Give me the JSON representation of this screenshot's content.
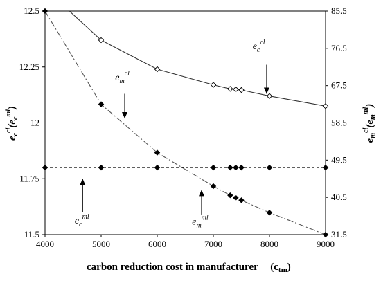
{
  "chart_data": {
    "type": "line",
    "xlabel": "carbon reduction cost in manufacturer",
    "xlabel_symbol": "(c",
    "xlabel_symbol_sub": "tm",
    "xlabel_symbol_close": ")",
    "ylabel_left": {
      "base": "e",
      "sub": "c",
      "sup": "cl",
      "paren_base": "(e",
      "paren_sub": "c",
      "paren_sup": "ml",
      "paren_close": ")"
    },
    "ylabel_right": {
      "base": "e",
      "sub": "m",
      "sup": "cl",
      "paren_base": "(e",
      "paren_sub": "m",
      "paren_sup": "ml",
      "paren_close": ")"
    },
    "xlim": [
      4000,
      9000
    ],
    "ylim_left": [
      11.5,
      12.5
    ],
    "ylim_right": [
      31.5,
      85.5
    ],
    "x_ticks": [
      "4000",
      "5000",
      "6000",
      "7000",
      "8000",
      "9000"
    ],
    "y_ticks_left": [
      "12.5",
      "12.25",
      "12",
      "11.75",
      "11.5"
    ],
    "y_ticks_right": [
      "85.5",
      "76.5",
      "67.5",
      "58.5",
      "49.5",
      "40.5",
      "31.5"
    ],
    "grid": false,
    "series": [
      {
        "key": "ec_cl",
        "axis": "left",
        "style": "solid",
        "marker": "open-diamond",
        "x": [
          4000,
          5000,
          6000,
          7000,
          7300,
          7400,
          7500,
          8000,
          9000
        ],
        "y": [
          12.6,
          12.37,
          12.24,
          12.17,
          12.152,
          12.15,
          12.147,
          12.12,
          12.075
        ]
      },
      {
        "key": "em_cl",
        "axis": "right",
        "style": "dash-dot",
        "marker": "filled-diamond",
        "x": [
          4000,
          5000,
          6000,
          7000,
          7300,
          7400,
          7500,
          8000,
          9000
        ],
        "y": [
          85.5,
          63.0,
          51.3,
          43.2,
          41.0,
          40.4,
          39.8,
          36.8,
          31.5
        ]
      },
      {
        "key": "ec_ml",
        "axis": "left",
        "style": "dashed",
        "marker": "filled-diamond",
        "x": [
          4000,
          5000,
          6000,
          7000,
          7300,
          7400,
          7500,
          8000,
          9000
        ],
        "y": [
          11.8,
          11.8,
          11.8,
          11.8,
          11.8,
          11.8,
          11.8,
          11.8,
          11.8
        ]
      }
    ],
    "annotations": [
      {
        "key": "ec_cl",
        "base": "e",
        "sub": "c",
        "sup": "cl",
        "text_x": 7700,
        "text_axis": "left",
        "text_y": 12.33,
        "arrow_x": 7950,
        "arrow_from": 12.26,
        "arrow_to": 12.13
      },
      {
        "key": "em_cl",
        "base": "e",
        "sub": "m",
        "sup": "cl",
        "text_x": 5250,
        "text_axis": "left",
        "text_y": 12.19,
        "arrow_x": 5420,
        "arrow_from": 12.13,
        "arrow_to": 12.02
      },
      {
        "key": "ec_ml",
        "base": "e",
        "sub": "c",
        "sup": "ml",
        "text_x": 4530,
        "text_axis": "left",
        "text_y": 11.55,
        "arrow_x": 4670,
        "arrow_from": 11.6,
        "arrow_to": 11.75
      },
      {
        "key": "em_ml",
        "base": "e",
        "sub": "m",
        "sup": "ml",
        "text_x": 6620,
        "text_axis": "left",
        "text_y": 11.545,
        "arrow_x": 6790,
        "arrow_from": 11.59,
        "arrow_to": 11.7
      }
    ],
    "colors": {
      "line": "#333333",
      "dash_dot": "#555555",
      "marker": "#000000",
      "open_fill": "#ffffff"
    }
  }
}
